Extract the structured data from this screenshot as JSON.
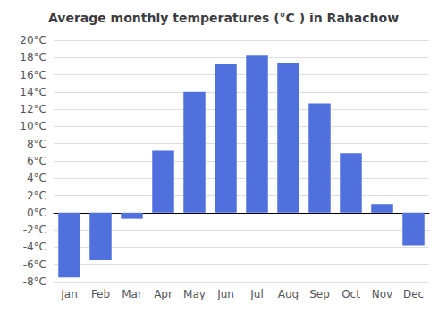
{
  "chart_data": {
    "type": "bar",
    "title": "Average monthly temperatures (°C ) in Rahachow",
    "categories": [
      "Jan",
      "Feb",
      "Mar",
      "Apr",
      "May",
      "Jun",
      "Jul",
      "Aug",
      "Sep",
      "Oct",
      "Nov",
      "Dec"
    ],
    "values": [
      -7.5,
      -5.5,
      -0.7,
      7.2,
      14.0,
      17.2,
      18.2,
      17.4,
      12.7,
      6.9,
      1.0,
      -3.8
    ],
    "ylim": [
      -8,
      20
    ],
    "yticks": [
      {
        "value": -8,
        "label": "-8°C"
      },
      {
        "value": -6,
        "label": "-6°C"
      },
      {
        "value": -4,
        "label": "-4°C"
      },
      {
        "value": -2,
        "label": "-2°C"
      },
      {
        "value": 0,
        "label": "0°C"
      },
      {
        "value": 2,
        "label": "2°C"
      },
      {
        "value": 4,
        "label": "4°C"
      },
      {
        "value": 6,
        "label": "6°C"
      },
      {
        "value": 8,
        "label": "8°C"
      },
      {
        "value": 10,
        "label": "10°C"
      },
      {
        "value": 12,
        "label": "12°C"
      },
      {
        "value": 14,
        "label": "14°C"
      },
      {
        "value": 16,
        "label": "16°C"
      },
      {
        "value": 18,
        "label": "18°C"
      },
      {
        "value": 20,
        "label": "20°C"
      }
    ],
    "grid": true
  }
}
